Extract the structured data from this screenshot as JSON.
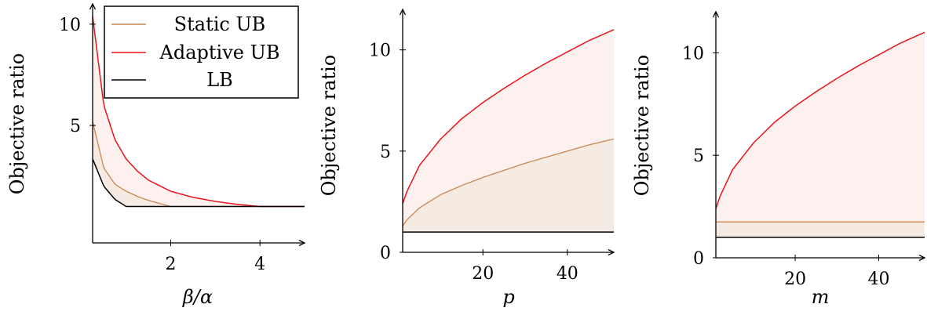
{
  "colors": {
    "static": "#c8874f",
    "adaptive": "#e8141b",
    "lb": "#000000",
    "fill_outer": "#fdf1ef",
    "fill_inner": "#f6ebe3"
  },
  "legend": {
    "entries": [
      "Static UB",
      "Adaptive UB",
      "LB"
    ],
    "placement": "top-left of first panel"
  },
  "chart_data": [
    {
      "type": "line",
      "xlabel": "β/α",
      "ylabel": "Objective ratio",
      "xlim": [
        0.25,
        5
      ],
      "ylim": [
        -0.8,
        11
      ],
      "xticks": [
        2,
        4
      ],
      "yticks": [
        5,
        10
      ],
      "shaded_between": [
        [
          "Adaptive UB",
          "Static UB"
        ],
        [
          "Static UB",
          "LB"
        ]
      ],
      "series": [
        {
          "name": "Static UB",
          "x": [
            0.25,
            0.5,
            0.75,
            1,
            1.25,
            1.5,
            1.75,
            2,
            3,
            4,
            5
          ],
          "y": [
            5.2,
            2.9,
            2.1,
            1.75,
            1.5,
            1.3,
            1.15,
            1.0,
            1.0,
            1.0,
            1.0
          ]
        },
        {
          "name": "Adaptive UB",
          "x": [
            0.25,
            0.5,
            0.75,
            1,
            1.25,
            1.5,
            2,
            2.5,
            3,
            3.5,
            4,
            5
          ],
          "y": [
            10.4,
            6.0,
            4.3,
            3.35,
            2.75,
            2.3,
            1.75,
            1.45,
            1.25,
            1.1,
            1.0,
            1.0
          ]
        },
        {
          "name": "LB",
          "x": [
            0.25,
            0.5,
            0.75,
            1,
            5
          ],
          "y": [
            3.35,
            2.0,
            1.35,
            1.0,
            1.0
          ]
        }
      ]
    },
    {
      "type": "line",
      "xlabel": "p",
      "ylabel": "Objective ratio",
      "xlim": [
        1,
        51
      ],
      "ylim": [
        0,
        12
      ],
      "xticks": [
        20,
        40
      ],
      "yticks": [
        0,
        5,
        10
      ],
      "shaded_between": [
        [
          "Adaptive UB",
          "Static UB"
        ],
        [
          "Static UB",
          "LB"
        ]
      ],
      "series": [
        {
          "name": "Static UB",
          "x": [
            1,
            2,
            5,
            10,
            15,
            20,
            25,
            30,
            35,
            40,
            45,
            51
          ],
          "y": [
            1.3,
            1.6,
            2.2,
            2.85,
            3.3,
            3.7,
            4.05,
            4.4,
            4.7,
            5.0,
            5.3,
            5.6
          ]
        },
        {
          "name": "Adaptive UB",
          "x": [
            1,
            2,
            5,
            10,
            15,
            20,
            25,
            30,
            35,
            40,
            45,
            51
          ],
          "y": [
            2.4,
            3.0,
            4.3,
            5.6,
            6.6,
            7.4,
            8.1,
            8.75,
            9.35,
            9.9,
            10.45,
            11.0
          ]
        },
        {
          "name": "LB",
          "x": [
            1,
            51
          ],
          "y": [
            1.0,
            1.0
          ]
        }
      ]
    },
    {
      "type": "line",
      "xlabel": "m",
      "ylabel": "Objective ratio",
      "xlim": [
        1,
        51
      ],
      "ylim": [
        0,
        12
      ],
      "xticks": [
        20,
        40
      ],
      "yticks": [
        0,
        5,
        10
      ],
      "shaded_between": [
        [
          "Adaptive UB",
          "Static UB"
        ],
        [
          "Static UB",
          "LB"
        ]
      ],
      "series": [
        {
          "name": "Static UB",
          "x": [
            1,
            51
          ],
          "y": [
            1.75,
            1.75
          ]
        },
        {
          "name": "Adaptive UB",
          "x": [
            1,
            2,
            5,
            10,
            15,
            20,
            25,
            30,
            35,
            40,
            45,
            51
          ],
          "y": [
            2.4,
            3.0,
            4.3,
            5.6,
            6.6,
            7.4,
            8.1,
            8.75,
            9.35,
            9.9,
            10.45,
            11.0
          ]
        },
        {
          "name": "LB",
          "x": [
            1,
            51
          ],
          "y": [
            1.0,
            1.0
          ]
        }
      ]
    }
  ]
}
